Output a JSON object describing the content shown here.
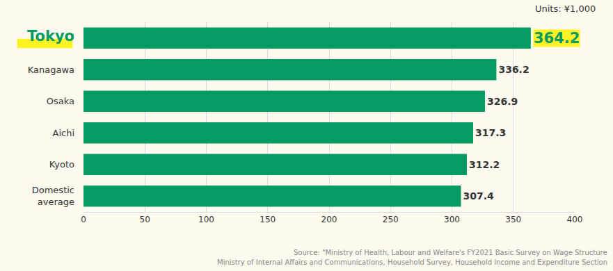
{
  "chart_data": {
    "type": "bar",
    "orientation": "horizontal",
    "categories": [
      "Tokyo",
      "Kanagawa",
      "Osaka",
      "Aichi",
      "Kyoto",
      "Domestic average"
    ],
    "values": [
      364.2,
      336.2,
      326.9,
      317.3,
      312.2,
      307.4
    ],
    "color": "#079a62",
    "xlim": [
      0,
      400
    ],
    "xticks": [
      0,
      50,
      100,
      150,
      200,
      250,
      300,
      350,
      400
    ],
    "grid": true,
    "data_labels": true,
    "annotations": [
      "Units: ¥1,000",
      "Source: \"Ministry of Health, Labour and Welfare's FY2021 Basic Survey on Wage Structure",
      "Ministry of Internal Affairs and Communications, Household Survey, Household Income and Expenditure Section"
    ]
  }
}
